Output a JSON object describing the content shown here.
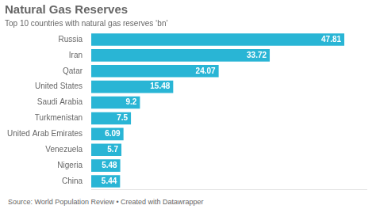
{
  "chart_data": {
    "type": "bar",
    "orientation": "horizontal",
    "title": "Natural Gas Reserves",
    "subtitle": "Top 10 countries with natural gas reserves ‘bn’",
    "annotations": [
      "Source: World Population Review • Created with Datawrapper"
    ],
    "categories": [
      "Russia",
      "Iran",
      "Qatar",
      "United States",
      "Saudi Arabia",
      "Turkmenistan",
      "United Arab Emirates",
      "Venezuela",
      "Nigeria",
      "China"
    ],
    "values": [
      47.81,
      33.72,
      24.07,
      15.48,
      9.2,
      7.5,
      6.09,
      5.7,
      5.48,
      5.44
    ],
    "color": "#29b5d5",
    "xlim": [
      0,
      52
    ],
    "tick_labels": "y",
    "grid": false,
    "legend": false,
    "data_labels": true
  }
}
